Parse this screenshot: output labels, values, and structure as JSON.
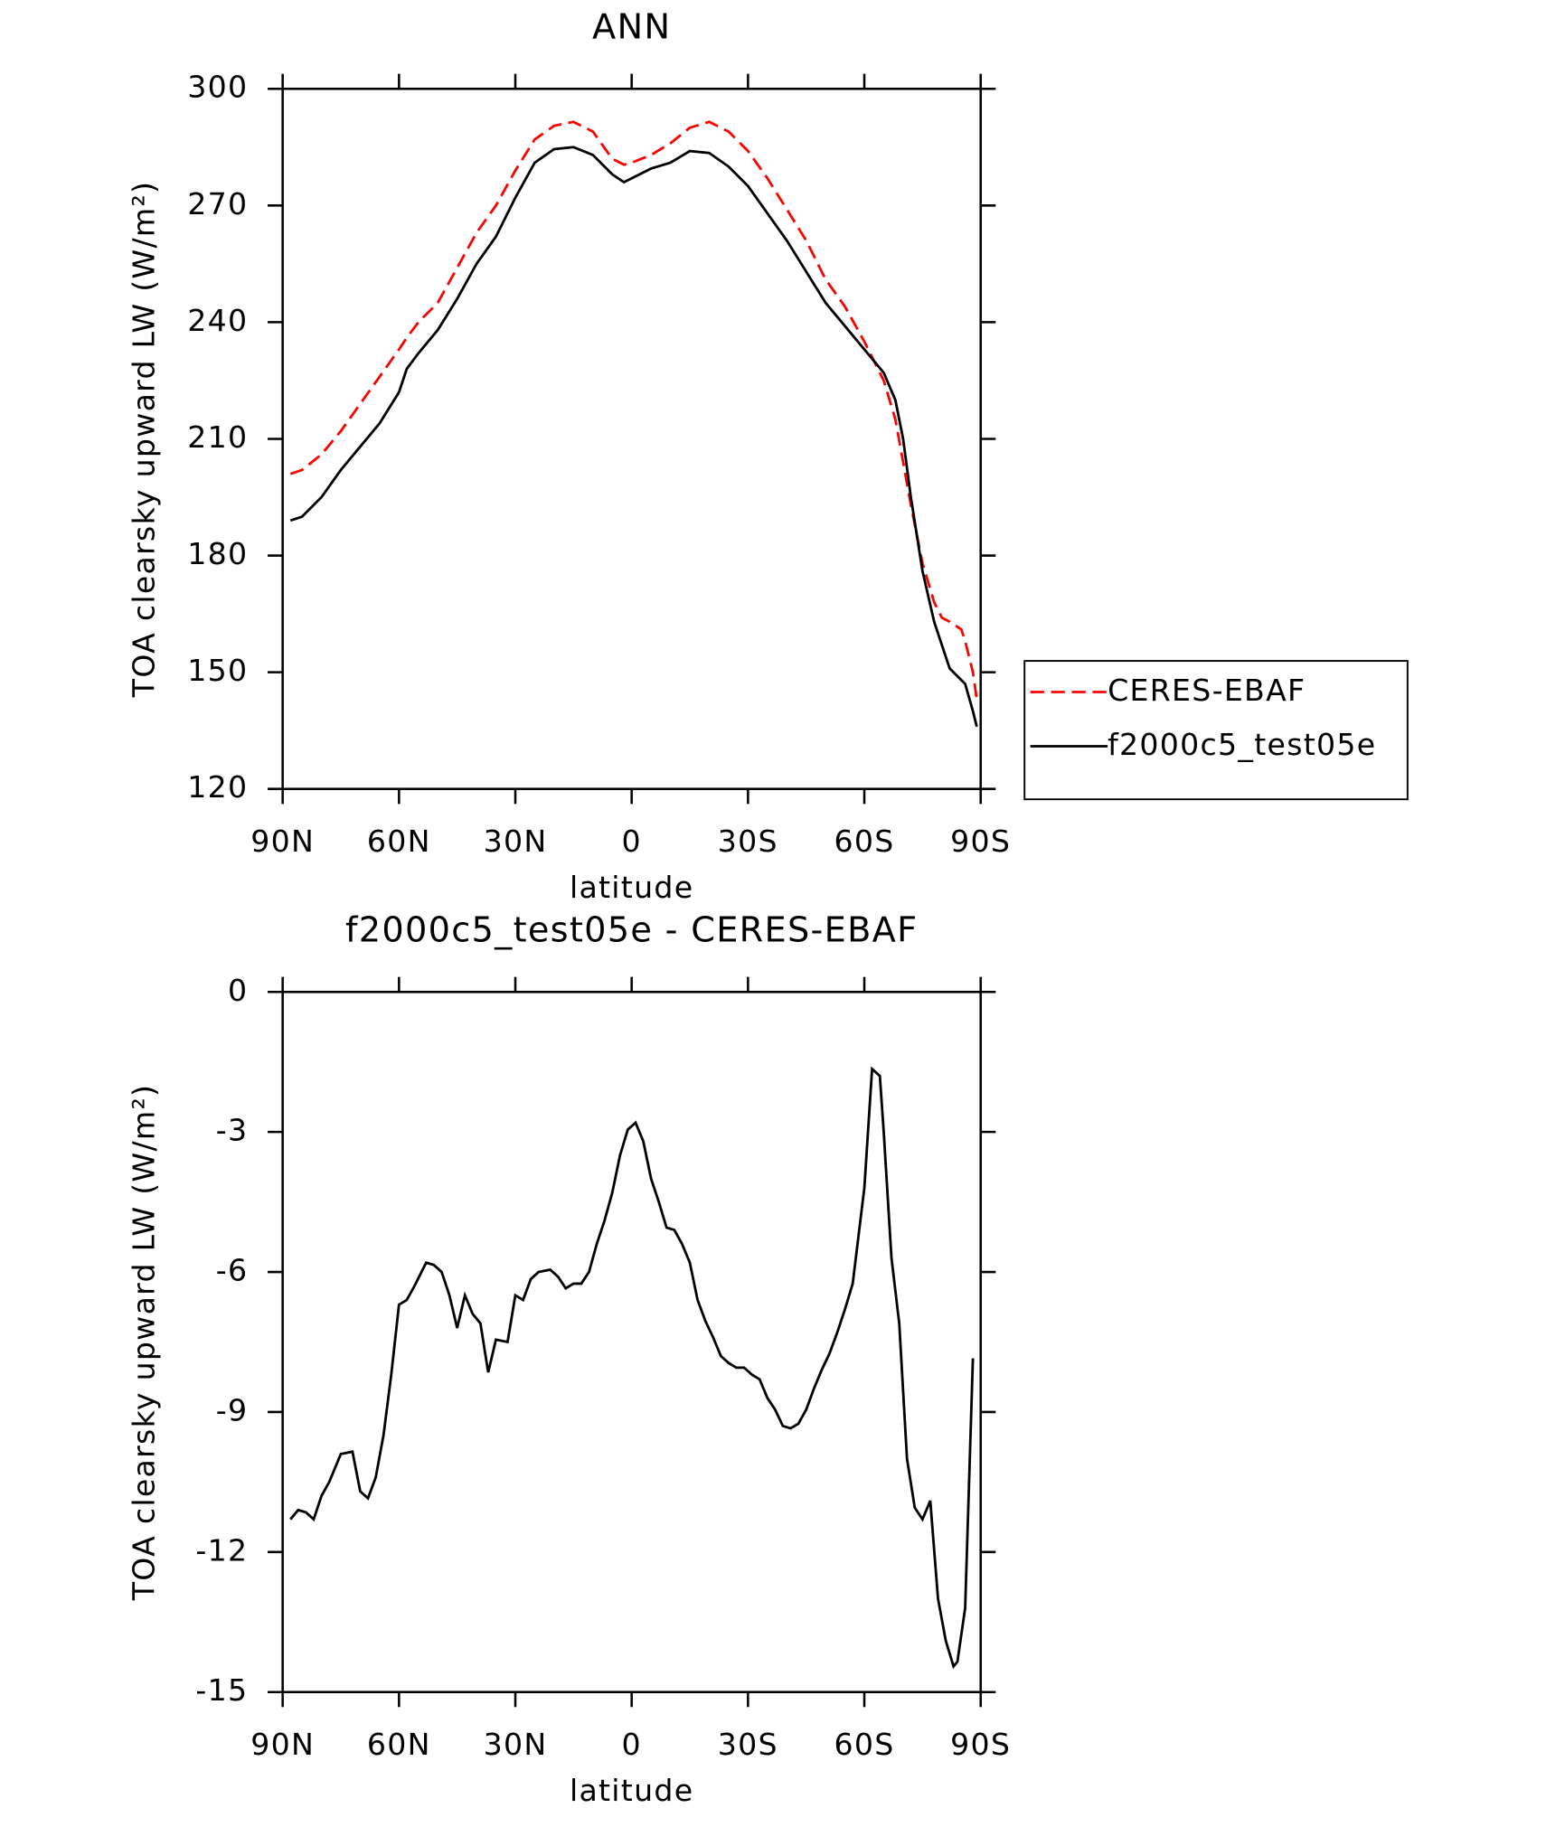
{
  "chart_data": [
    {
      "type": "line",
      "title": "ANN",
      "x_label": "latitude",
      "y_label": "TOA clearsky upward LW (W/m²)",
      "x": [
        88,
        85,
        80,
        75,
        70,
        65,
        60,
        58,
        55,
        50,
        45,
        40,
        35,
        30,
        25,
        20,
        15,
        10,
        5,
        2,
        0,
        -5,
        -10,
        -15,
        -20,
        -25,
        -30,
        -35,
        -40,
        -45,
        -50,
        -55,
        -60,
        -65,
        -68,
        -70,
        -72,
        -75,
        -78,
        -80,
        -82,
        -85,
        -86,
        -88,
        -89
      ],
      "series": [
        {
          "name": "CERES-EBAF",
          "color": "#ff0000",
          "line_style": "dashed",
          "values": [
            201,
            202,
            206,
            212,
            219,
            226,
            233,
            236,
            240,
            245,
            254,
            263,
            270,
            279,
            287,
            290.5,
            291.5,
            289,
            282,
            280.5,
            281,
            283,
            286,
            290,
            291.5,
            289,
            284,
            277,
            269,
            261,
            251,
            244,
            235,
            225,
            215,
            204,
            193,
            178,
            168,
            164,
            163,
            161,
            158,
            150,
            143
          ]
        },
        {
          "name": "f2000c5_test05e",
          "color": "#000000",
          "line_style": "solid",
          "values": [
            189,
            190,
            195,
            202,
            208,
            214,
            222,
            228,
            232,
            238,
            246,
            255,
            262,
            272,
            281,
            284.5,
            285,
            283,
            278,
            276,
            277,
            279.5,
            281,
            284,
            283.5,
            280,
            275,
            268,
            261,
            253,
            245,
            239,
            233,
            227,
            220,
            210,
            195,
            176,
            163,
            157,
            151,
            148,
            147,
            140,
            136
          ]
        }
      ],
      "xlim": [
        90,
        -90
      ],
      "xticks": [
        {
          "value": 90,
          "label": "90N"
        },
        {
          "value": 60,
          "label": "60N"
        },
        {
          "value": 30,
          "label": "30N"
        },
        0,
        {
          "value": -30,
          "label": "30S"
        },
        {
          "value": -60,
          "label": "60S"
        },
        {
          "value": -90,
          "label": "90S"
        }
      ],
      "ylim": [
        120,
        300
      ],
      "yticks": [
        120,
        150,
        180,
        210,
        240,
        270,
        300
      ],
      "legend": "right"
    },
    {
      "type": "line",
      "title": "f2000c5_test05e - CERES-EBAF",
      "x_label": "latitude",
      "y_label": "TOA clearsky upward LW (W/m²)",
      "x": [
        88,
        86,
        84,
        82,
        80,
        78,
        75,
        72,
        70,
        68,
        66,
        64,
        62,
        60,
        58,
        56,
        53,
        51,
        49,
        47,
        45,
        43,
        41,
        39,
        37,
        35,
        32,
        30,
        28,
        26,
        24,
        21,
        19,
        17,
        15,
        13,
        11,
        9,
        7,
        5,
        3,
        1,
        -1,
        -3,
        -5,
        -7,
        -9,
        -11,
        -13,
        -15,
        -17,
        -19,
        -21,
        -23,
        -25,
        -27,
        -29,
        -31,
        -33,
        -35,
        -37,
        -39,
        -41,
        -43,
        -45,
        -47,
        -49,
        -51,
        -53,
        -55,
        -57,
        -60,
        -62,
        -64,
        -65,
        -67,
        -69,
        -71,
        -73,
        -75,
        -77,
        -79,
        -81,
        -83,
        -84,
        -86,
        -88
      ],
      "values": [
        -11.3,
        -11.1,
        -11.15,
        -11.3,
        -10.8,
        -10.5,
        -9.9,
        -9.85,
        -10.7,
        -10.85,
        -10.4,
        -9.5,
        -8.2,
        -6.7,
        -6.6,
        -6.3,
        -5.8,
        -5.85,
        -6.0,
        -6.5,
        -7.2,
        -6.5,
        -6.9,
        -7.1,
        -8.15,
        -7.45,
        -7.5,
        -6.5,
        -6.6,
        -6.15,
        -6.0,
        -5.95,
        -6.1,
        -6.35,
        -6.25,
        -6.25,
        -6.0,
        -5.4,
        -4.9,
        -4.3,
        -3.5,
        -2.95,
        -2.8,
        -3.2,
        -4.0,
        -4.5,
        -5.05,
        -5.1,
        -5.4,
        -5.8,
        -6.6,
        -7.05,
        -7.4,
        -7.8,
        -7.95,
        -8.05,
        -8.05,
        -8.2,
        -8.3,
        -8.7,
        -8.95,
        -9.3,
        -9.35,
        -9.25,
        -8.95,
        -8.5,
        -8.1,
        -7.75,
        -7.3,
        -6.8,
        -6.25,
        -4.2,
        -1.65,
        -1.8,
        -3.0,
        -5.7,
        -7.1,
        -10.0,
        -11.05,
        -11.3,
        -10.9,
        -13.0,
        -13.9,
        -14.45,
        -14.35,
        -13.2,
        -7.85
      ],
      "color": "#000000",
      "xlim": [
        90,
        -90
      ],
      "xticks": [
        {
          "value": 90,
          "label": "90N"
        },
        {
          "value": 60,
          "label": "60N"
        },
        {
          "value": 30,
          "label": "30N"
        },
        0,
        {
          "value": -30,
          "label": "30S"
        },
        {
          "value": -60,
          "label": "60S"
        },
        {
          "value": -90,
          "label": "90S"
        }
      ],
      "ylim": [
        -15,
        0
      ],
      "yticks": [
        -15,
        -12,
        -9,
        -6,
        -3,
        0
      ]
    }
  ]
}
